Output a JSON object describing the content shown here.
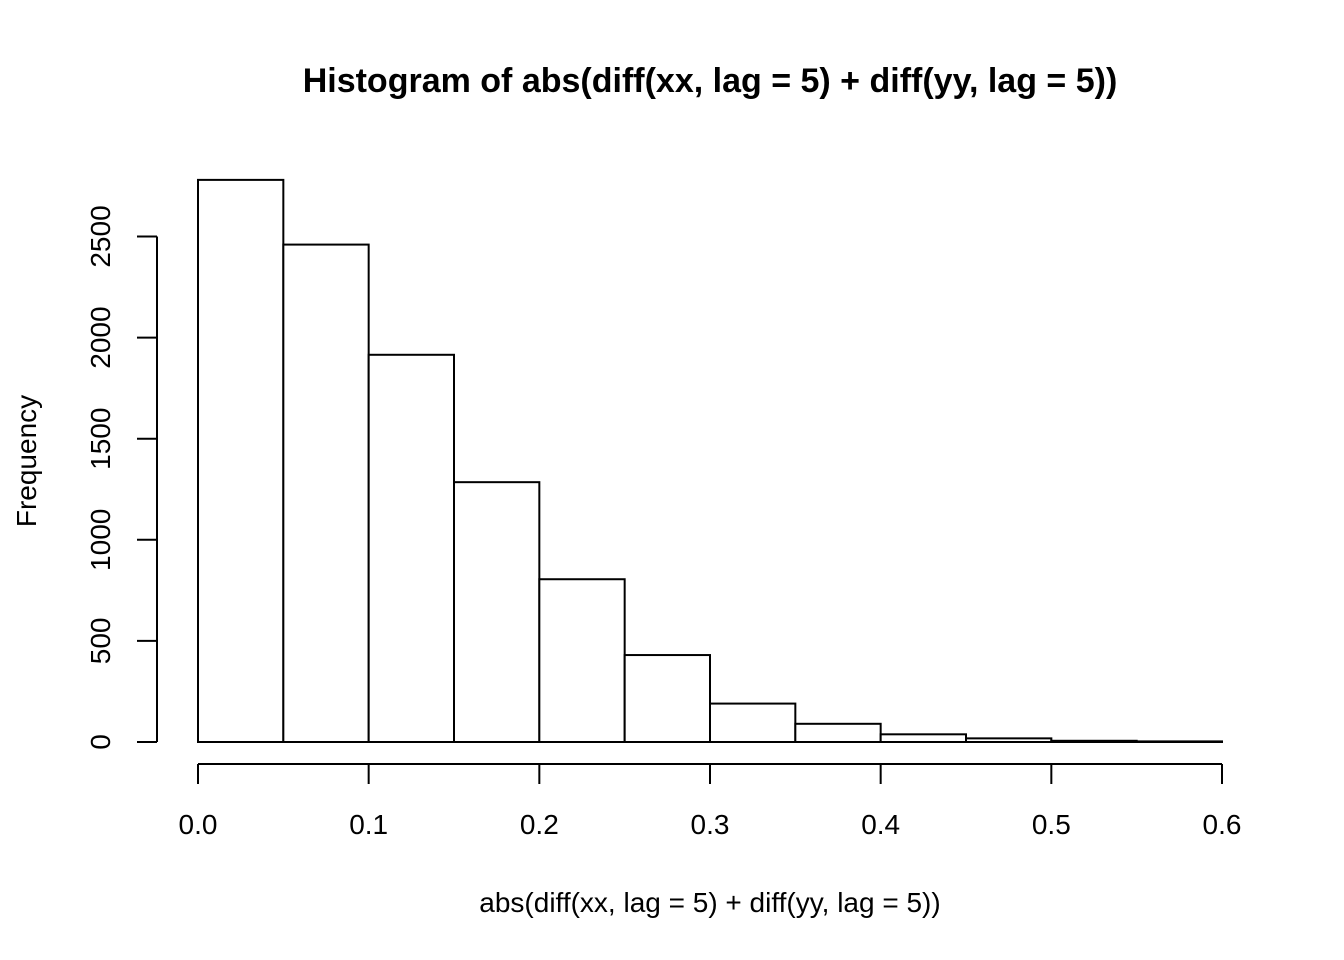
{
  "chart_data": {
    "type": "bar",
    "title": "Histogram of abs(diff(xx, lag = 5) + diff(yy, lag = 5))",
    "xlabel": "abs(diff(xx, lag = 5) + diff(yy, lag = 5))",
    "ylabel": "Frequency",
    "bins": [
      {
        "from": 0.0,
        "to": 0.05,
        "count": 2780
      },
      {
        "from": 0.05,
        "to": 0.1,
        "count": 2460
      },
      {
        "from": 0.1,
        "to": 0.15,
        "count": 1915
      },
      {
        "from": 0.15,
        "to": 0.2,
        "count": 1285
      },
      {
        "from": 0.2,
        "to": 0.25,
        "count": 805
      },
      {
        "from": 0.25,
        "to": 0.3,
        "count": 430
      },
      {
        "from": 0.3,
        "to": 0.35,
        "count": 190
      },
      {
        "from": 0.35,
        "to": 0.4,
        "count": 90
      },
      {
        "from": 0.4,
        "to": 0.45,
        "count": 38
      },
      {
        "from": 0.45,
        "to": 0.5,
        "count": 18
      },
      {
        "from": 0.5,
        "to": 0.55,
        "count": 6
      },
      {
        "from": 0.55,
        "to": 0.6,
        "count": 3
      }
    ],
    "xlim": [
      0,
      0.6
    ],
    "ylim": [
      0,
      2780
    ],
    "xticks": [
      "0.0",
      "0.1",
      "0.2",
      "0.3",
      "0.4",
      "0.5",
      "0.6"
    ],
    "yticks": [
      "0",
      "500",
      "1000",
      "1500",
      "2000",
      "2500"
    ],
    "grid": false,
    "colors": {
      "bar_fill": "#ffffff",
      "bar_stroke": "#000000"
    }
  }
}
